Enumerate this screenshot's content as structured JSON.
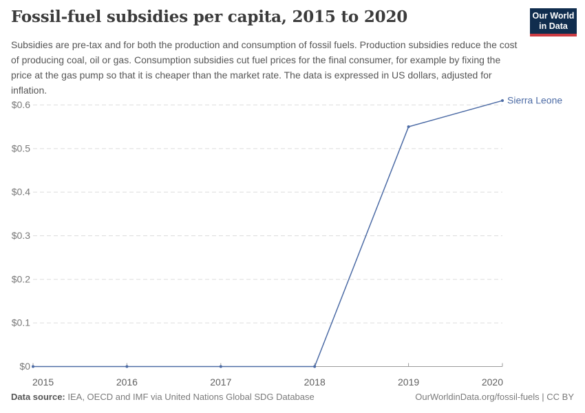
{
  "header": {
    "title": "Fossil-fuel subsidies per capita, 2015 to 2020",
    "subtitle": "Subsidies are pre-tax and for both the production and consumption of fossil fuels. Production subsidies reduce the cost of producing coal, oil or gas. Consumption subsidies cut fuel prices for the final consumer, for example by fixing the price at the gas pump so that it is cheaper than the market rate. The data is expressed in US dollars, adjusted for inflation.",
    "logo": {
      "line1": "Our World",
      "line2": "in Data"
    }
  },
  "chart_data": {
    "type": "line",
    "title": "Fossil-fuel subsidies per capita, 2015 to 2020",
    "x": [
      "2015",
      "2016",
      "2017",
      "2018",
      "2019",
      "2020"
    ],
    "series": [
      {
        "name": "Sierra Leone",
        "values": [
          0,
          0,
          0,
          0,
          0.55,
          0.61
        ],
        "color": "#4c6ba5"
      }
    ],
    "xlabel": "",
    "ylabel": "",
    "ylim": [
      0,
      0.62
    ],
    "yticks": [
      {
        "value": 0,
        "label": "$0"
      },
      {
        "value": 0.1,
        "label": "$0.1"
      },
      {
        "value": 0.2,
        "label": "$0.2"
      },
      {
        "value": 0.3,
        "label": "$0.3"
      },
      {
        "value": 0.4,
        "label": "$0.4"
      },
      {
        "value": 0.5,
        "label": "$0.5"
      },
      {
        "value": 0.6,
        "label": "$0.6"
      }
    ],
    "grid": "horizontal-dashed",
    "legend_position": "end-of-line-label"
  },
  "footer": {
    "source_label": "Data source:",
    "source_text": "IEA, OECD and IMF via United Nations Global SDG Database",
    "credit": "OurWorldinData.org/fossil-fuels | CC BY"
  },
  "colors": {
    "line": "#4c6ba5",
    "grid": "#dcdcdc",
    "axis": "#9a9a9a",
    "y_label": "#787878",
    "x_label": "#5f5f5f",
    "logo_bg": "#102d4e",
    "logo_red": "#cc3b42"
  }
}
